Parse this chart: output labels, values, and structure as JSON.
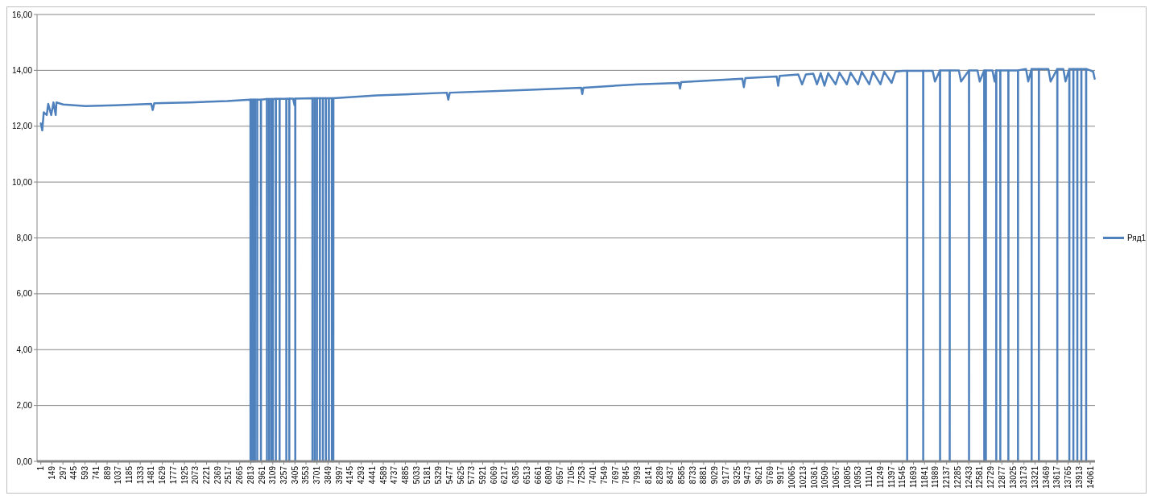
{
  "chart_data": {
    "type": "line",
    "xlim": [
      -50,
      14125
    ],
    "ylim": [
      0,
      16
    ],
    "xticks": [
      1,
      149,
      297,
      445,
      593,
      741,
      889,
      1037,
      1185,
      1333,
      1481,
      1629,
      1777,
      1925,
      2073,
      2221,
      2369,
      2517,
      2665,
      2813,
      2961,
      3109,
      3257,
      3405,
      3553,
      3701,
      3849,
      3997,
      4145,
      4293,
      4441,
      4589,
      4737,
      4885,
      5033,
      5181,
      5329,
      5477,
      5625,
      5773,
      5921,
      6069,
      6217,
      6365,
      6513,
      6661,
      6809,
      6957,
      7105,
      7253,
      7401,
      7549,
      7697,
      7845,
      7993,
      8141,
      8289,
      8437,
      8585,
      8733,
      8881,
      9029,
      9177,
      9325,
      9473,
      9621,
      9769,
      9917,
      10065,
      10213,
      10361,
      10509,
      10657,
      10805,
      10953,
      11101,
      11249,
      11397,
      11545,
      11693,
      11841,
      11989,
      12137,
      12285,
      12433,
      12581,
      12729,
      12877,
      13025,
      13173,
      13321,
      13469,
      13617,
      13765,
      13913,
      14061
    ],
    "yticks": [
      {
        "value": 0,
        "label": "0,00"
      },
      {
        "value": 2,
        "label": "2,00"
      },
      {
        "value": 4,
        "label": "4,00"
      },
      {
        "value": 6,
        "label": "6,00"
      },
      {
        "value": 8,
        "label": "8,00"
      },
      {
        "value": 10,
        "label": "10,00"
      },
      {
        "value": 12,
        "label": "12,00"
      },
      {
        "value": 14,
        "label": "14,00"
      },
      {
        "value": 16,
        "label": "16,00"
      }
    ],
    "grid": "y",
    "legend": "right",
    "marker": "none",
    "line_style": "solid",
    "series": [
      {
        "name": "Ряд1",
        "color": "#4f81bd",
        "x": [
          1,
          20,
          40,
          80,
          100,
          140,
          170,
          200,
          210,
          300,
          600,
          1000,
          1480,
          1500,
          1520,
          2000,
          2500,
          2809,
          2810,
          2811,
          2829,
          2830,
          2831,
          2849,
          2850,
          2851,
          2869,
          2870,
          2871,
          2899,
          2900,
          2901,
          2949,
          2950,
          2951,
          3029,
          3030,
          3031,
          3059,
          3060,
          3061,
          3089,
          3090,
          3091,
          3109,
          3110,
          3111,
          3149,
          3150,
          3151,
          3199,
          3200,
          3201,
          3289,
          3290,
          3291,
          3329,
          3330,
          3331,
          3380,
          3400,
          3405,
          3409,
          3410,
          3411,
          3639,
          3640,
          3641,
          3669,
          3670,
          3671,
          3699,
          3700,
          3701,
          3739,
          3740,
          3741,
          3779,
          3780,
          3781,
          3819,
          3820,
          3821,
          3859,
          3860,
          3861,
          3899,
          3900,
          3901,
          3919,
          3920,
          3921,
          4500,
          5440,
          5460,
          5480,
          6500,
          7240,
          7255,
          7270,
          8000,
          8550,
          8565,
          8580,
          9400,
          9420,
          9440,
          9860,
          9880,
          9900,
          10150,
          10200,
          10250,
          10350,
          10400,
          10450,
          10500,
          10550,
          10650,
          10700,
          10800,
          10850,
          10950,
          11000,
          11100,
          11150,
          11250,
          11300,
          11400,
          11450,
          11550,
          11607,
          11608,
          11609,
          11822,
          11823,
          11824,
          11950,
          11980,
          12048,
          12049,
          12050,
          12177,
          12178,
          12179,
          12300,
          12330,
          12436,
          12437,
          12438,
          12550,
          12580,
          12640,
          12641,
          12642,
          12662,
          12663,
          12664,
          12750,
          12780,
          12801,
          12802,
          12803,
          12855,
          12856,
          12857,
          12963,
          12964,
          12965,
          13092,
          13093,
          13094,
          13200,
          13230,
          13275,
          13276,
          13277,
          13372,
          13373,
          13374,
          13500,
          13530,
          13619,
          13620,
          13621,
          13700,
          13730,
          13780,
          13781,
          13782,
          13834,
          13835,
          13836,
          13887,
          13888,
          13889,
          13941,
          13942,
          13943,
          14005,
          14006,
          14007,
          14060,
          14100,
          14120
        ],
        "values": [
          12.1,
          11.85,
          12.5,
          12.4,
          12.8,
          12.4,
          12.85,
          12.4,
          12.85,
          12.78,
          12.72,
          12.75,
          12.8,
          12.58,
          12.82,
          12.85,
          12.9,
          12.95,
          0,
          12.95,
          12.95,
          0,
          12.95,
          12.95,
          0,
          12.95,
          12.95,
          0,
          12.95,
          12.95,
          0,
          12.95,
          12.95,
          0,
          12.95,
          12.97,
          0,
          12.97,
          12.97,
          0,
          12.97,
          12.97,
          0,
          12.97,
          12.97,
          0,
          12.97,
          12.98,
          0,
          12.98,
          12.98,
          0,
          12.98,
          12.98,
          0,
          12.98,
          12.99,
          0,
          12.99,
          12.99,
          12.75,
          12.99,
          12.99,
          0,
          12.99,
          13.0,
          0,
          13.0,
          13.0,
          0,
          13.0,
          13.0,
          0,
          13.0,
          13.0,
          0,
          13.0,
          13.0,
          0,
          13.0,
          13.0,
          0,
          13.0,
          13.0,
          0,
          13.0,
          13.0,
          0,
          13.0,
          13.0,
          0,
          13.0,
          13.1,
          13.2,
          12.95,
          13.2,
          13.3,
          13.38,
          13.15,
          13.38,
          13.5,
          13.55,
          13.35,
          13.58,
          13.7,
          13.4,
          13.72,
          13.78,
          13.45,
          13.8,
          13.85,
          13.5,
          13.85,
          13.88,
          13.5,
          13.9,
          13.45,
          13.9,
          13.5,
          13.92,
          13.5,
          13.92,
          13.5,
          13.95,
          13.5,
          13.95,
          13.5,
          13.95,
          13.55,
          13.95,
          13.98,
          13.98,
          0,
          13.98,
          13.98,
          0,
          13.98,
          13.98,
          13.6,
          14.0,
          0,
          14.0,
          14.0,
          0,
          14.0,
          14.0,
          13.6,
          14.0,
          0,
          14.0,
          14.0,
          13.6,
          14.0,
          0,
          14.0,
          14.0,
          0,
          14.0,
          14.0,
          13.6,
          14.0,
          0,
          14.0,
          14.0,
          0,
          14.0,
          14.0,
          0,
          14.0,
          14.0,
          0,
          14.0,
          14.05,
          13.6,
          14.05,
          0,
          14.05,
          14.05,
          0,
          14.05,
          14.05,
          13.6,
          14.05,
          0,
          14.05,
          14.05,
          13.6,
          14.05,
          0,
          14.05,
          14.05,
          0,
          14.05,
          14.05,
          0,
          14.05,
          14.05,
          0,
          14.05,
          14.05,
          0,
          14.05,
          14.0,
          13.95,
          13.7
        ]
      }
    ]
  }
}
